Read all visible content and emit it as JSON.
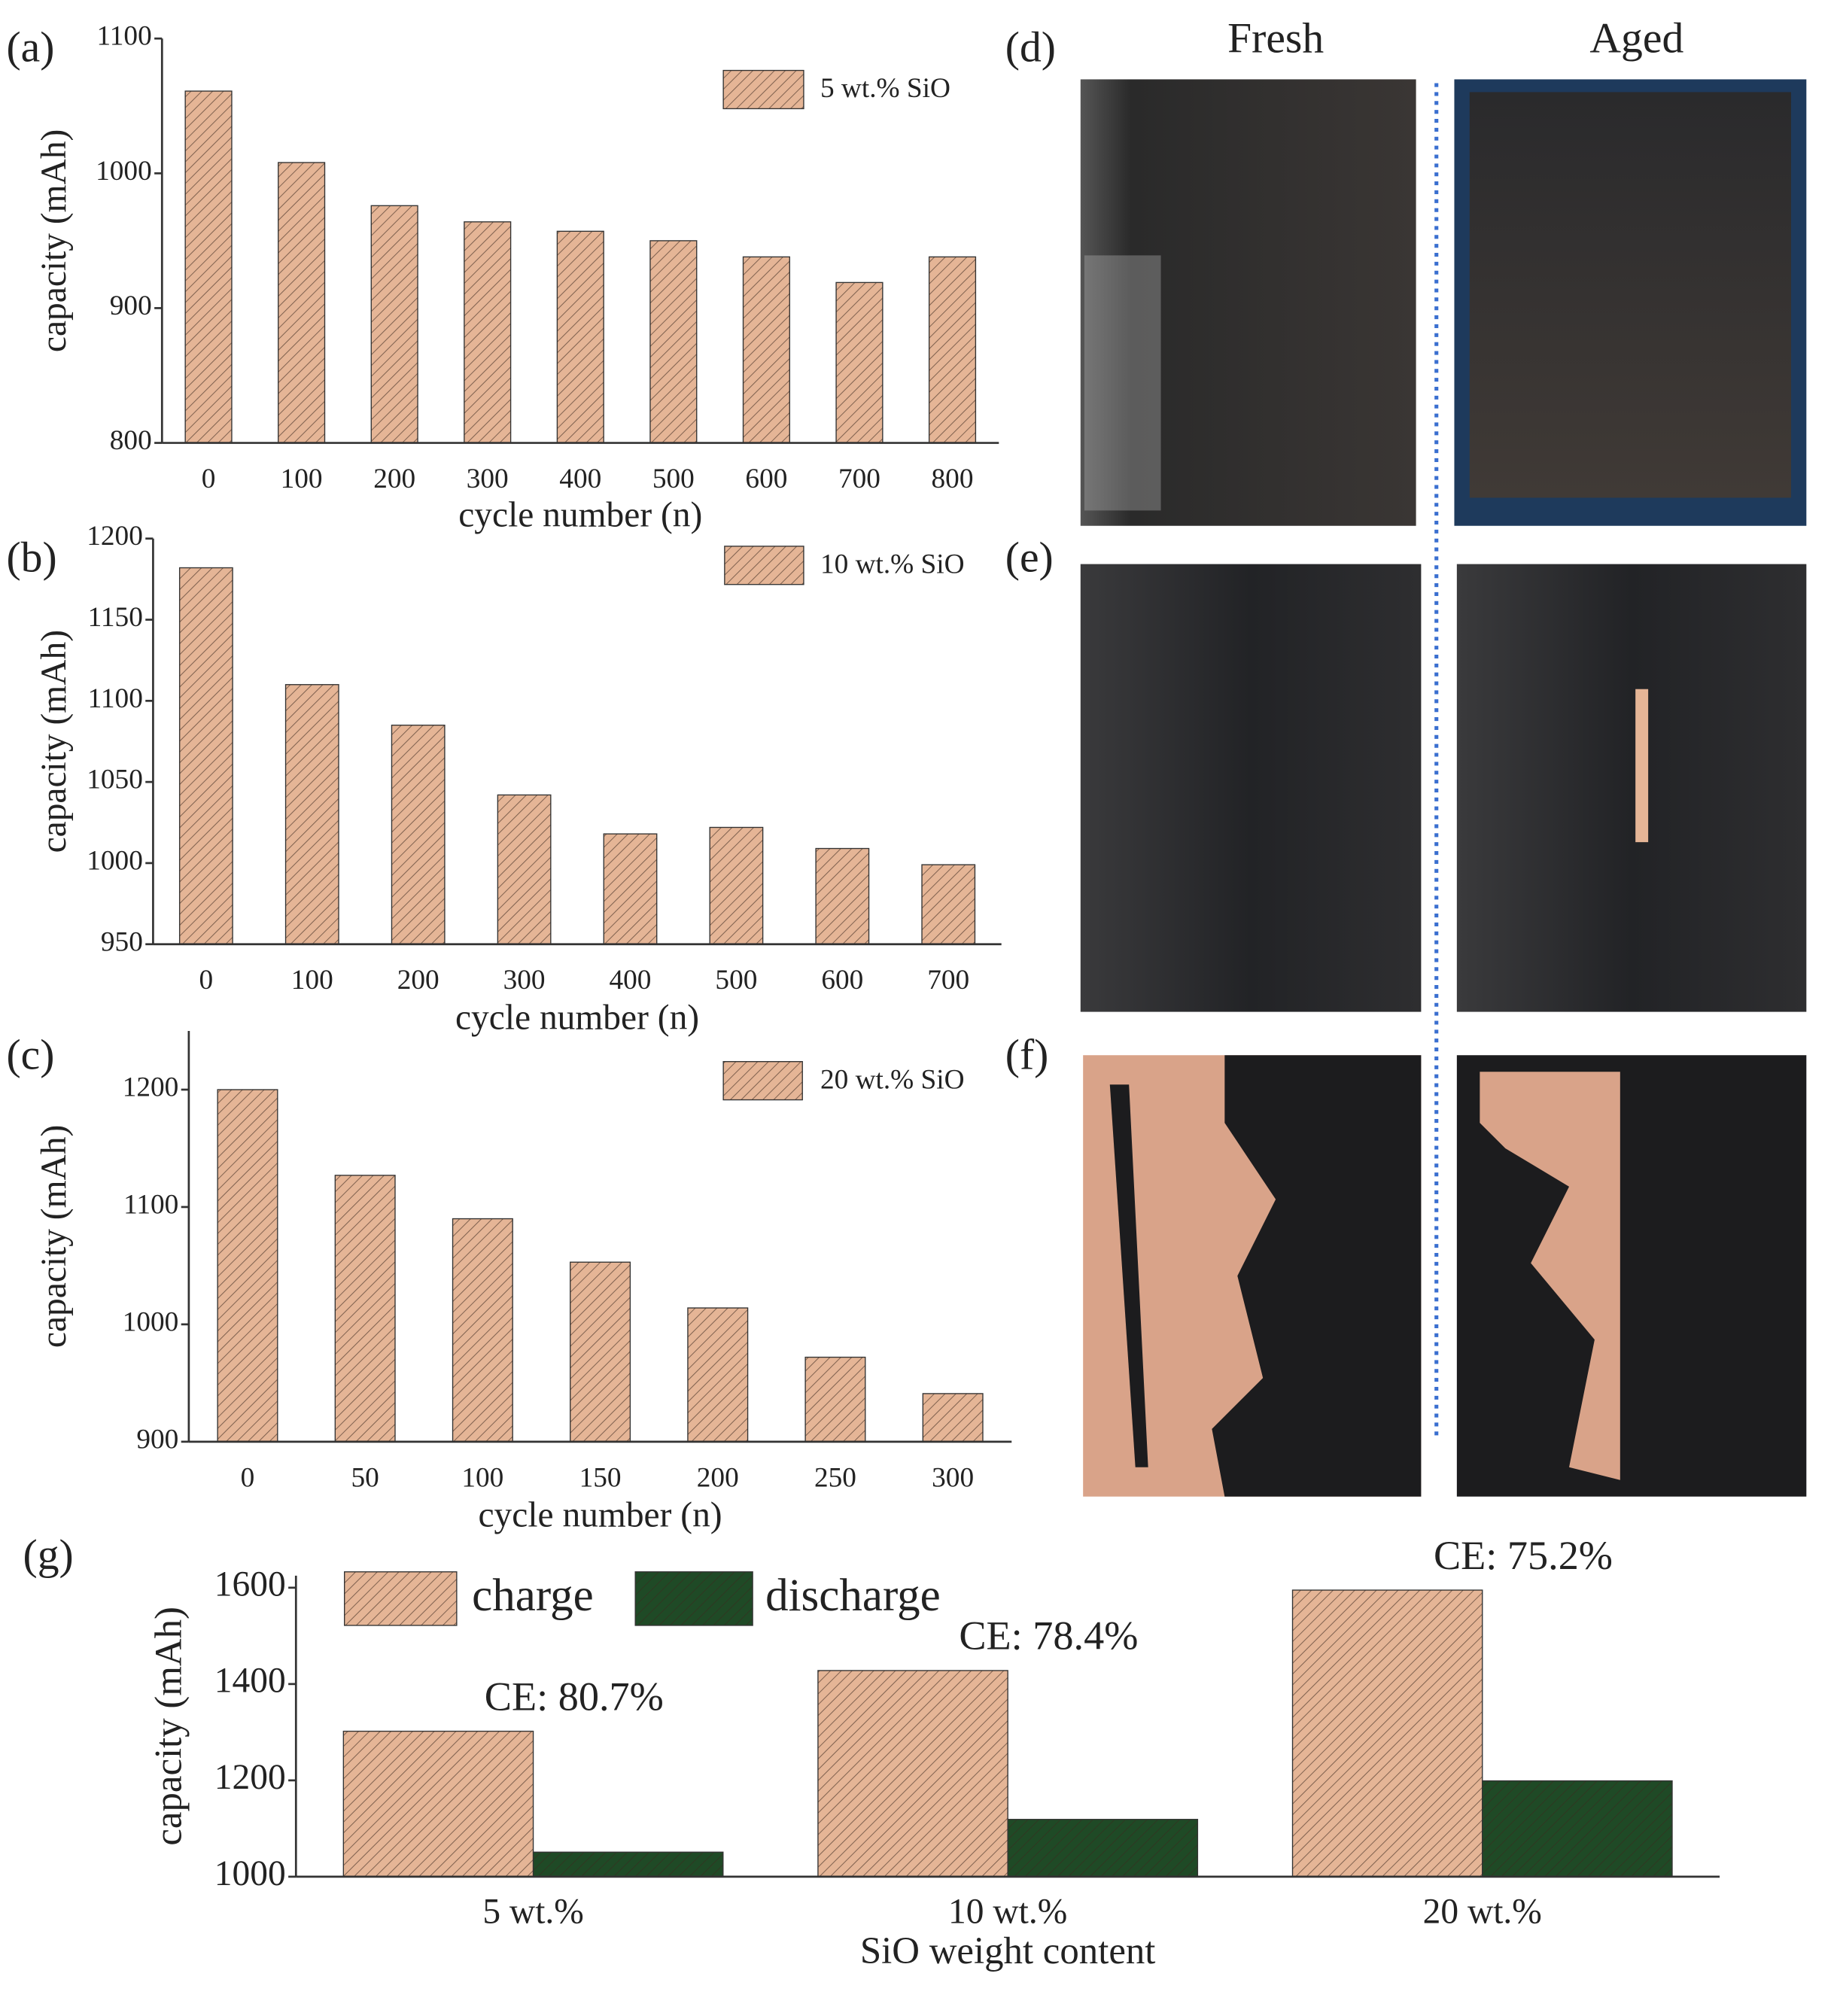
{
  "chart_data": [
    {
      "type": "bar",
      "panel_label": "(a)",
      "x_label": "cycle number (n)",
      "y_label": "capacity (mAh)",
      "categories": [
        "0",
        "100",
        "200",
        "300",
        "400",
        "500",
        "600",
        "700",
        "800"
      ],
      "series": [
        {
          "name": "5 wt.% SiO",
          "color": "#e5b596",
          "values": [
            1061,
            1008,
            976,
            964,
            957,
            950,
            938,
            919,
            938
          ]
        }
      ],
      "ylim": [
        800,
        1100
      ],
      "yticks": [
        800,
        900,
        1000,
        1100
      ]
    },
    {
      "type": "bar",
      "panel_label": "(b)",
      "x_label": "cycle number (n)",
      "y_label": "capacity (mAh)",
      "categories": [
        "0",
        "100",
        "200",
        "300",
        "400",
        "500",
        "600",
        "700"
      ],
      "series": [
        {
          "name": "10 wt.% SiO",
          "color": "#e5b596",
          "values": [
            1182,
            1110,
            1085,
            1042,
            1018,
            1022,
            1009,
            999
          ]
        }
      ],
      "ylim": [
        950,
        1200
      ],
      "yticks": [
        950,
        1000,
        1050,
        1100,
        1150,
        1200
      ]
    },
    {
      "type": "bar",
      "panel_label": "(c)",
      "x_label": "cycle number (n)",
      "y_label": "capacity (mAh)",
      "categories": [
        "0",
        "50",
        "100",
        "150",
        "200",
        "250",
        "300"
      ],
      "series": [
        {
          "name": "20 wt.% SiO",
          "color": "#e5b596",
          "values": [
            1200,
            1127,
            1090,
            1053,
            1014,
            972,
            941
          ]
        }
      ],
      "ylim": [
        900,
        1250
      ],
      "yticks": [
        900,
        1000,
        1100,
        1200
      ]
    },
    {
      "type": "bar",
      "panel_label": "(g)",
      "x_label": "SiO weight content",
      "y_label": "capacity (mAh)",
      "categories": [
        "5 wt.%",
        "10 wt.%",
        "20 wt.%"
      ],
      "series": [
        {
          "name": "charge",
          "color": "#e5b596",
          "values": [
            1302,
            1428,
            1595
          ]
        },
        {
          "name": "discharge",
          "color": "#1f4a26",
          "values": [
            1051,
            1119,
            1199
          ]
        }
      ],
      "annotations": [
        "CE: 80.7%",
        "CE: 78.4%",
        "CE: 75.2%"
      ],
      "ylim": [
        1000,
        1625
      ],
      "yticks": [
        1000,
        1200,
        1400,
        1600
      ]
    }
  ],
  "photos": {
    "column_titles": [
      "Fresh",
      "Aged"
    ],
    "panel_labels": [
      "(d)",
      "(e)",
      "(f)"
    ]
  }
}
